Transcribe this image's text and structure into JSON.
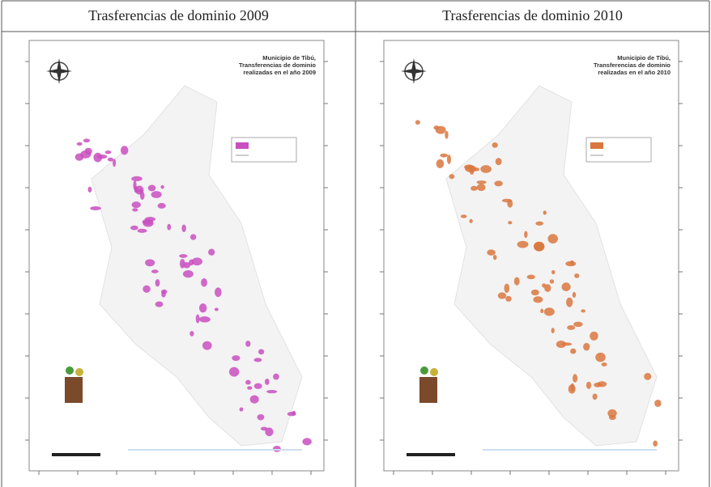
{
  "header": {
    "columns": [
      "Trasferencias de dominio 2009",
      "Trasferencias de dominio 2010"
    ]
  },
  "maps": [
    {
      "title": [
        "Municipio de Tibú,",
        "Transferencias de dominio",
        "realizadas en el año 2009"
      ]
    },
    {
      "title": [
        "Municipio de Tibú,",
        "Transferencias de dominio",
        "realizadas en el año 2010"
      ]
    }
  ]
}
